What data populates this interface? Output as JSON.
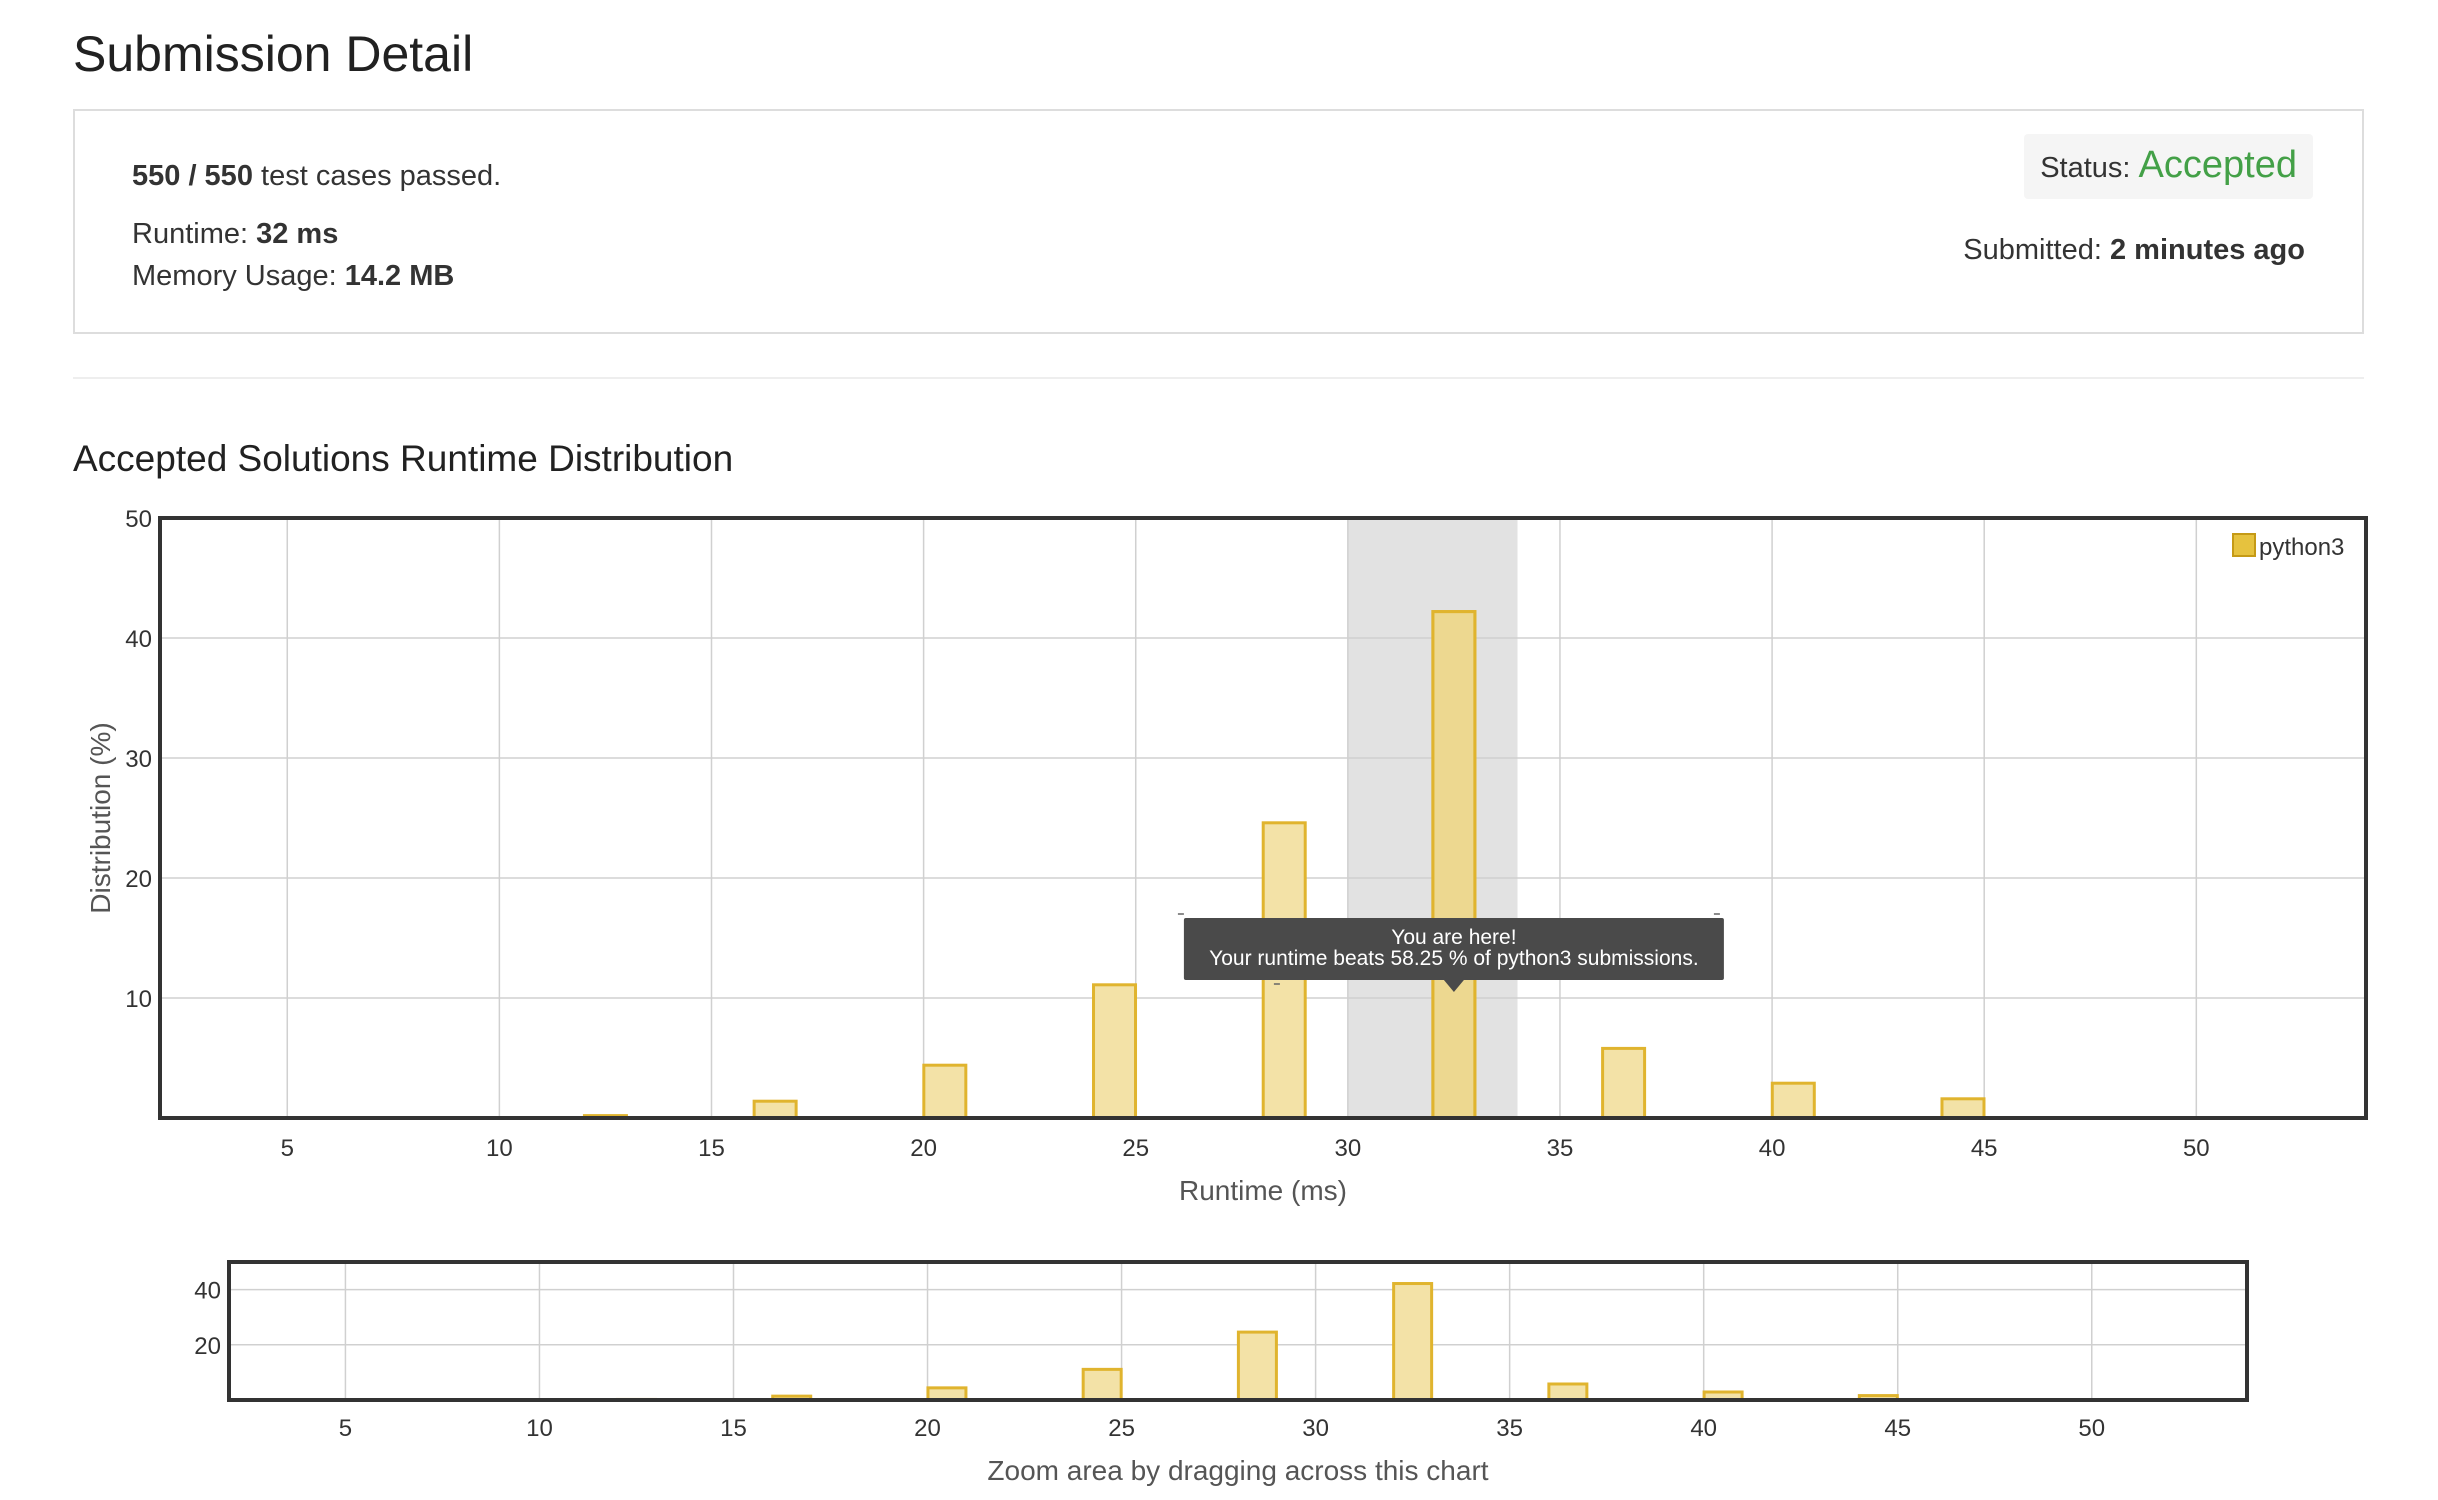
{
  "page": {
    "title": "Submission Detail"
  },
  "summary": {
    "passed_count": "550 / 550",
    "passed_suffix": "test cases passed.",
    "runtime_label": "Runtime:",
    "runtime_value": "32 ms",
    "memory_label": "Memory Usage:",
    "memory_value": "14.2 MB",
    "status_label": "Status:",
    "status_value": "Accepted",
    "submitted_label": "Submitted:",
    "submitted_value": "2 minutes ago"
  },
  "colors": {
    "accepted": "#43a047",
    "bar_fill": "#f3e2a7",
    "bar_stroke": "#e0b42e",
    "highlight_band": "#e2e2e2",
    "tooltip_bg": "#4a4a4a"
  },
  "section": {
    "title": "Accepted Solutions Runtime Distribution"
  },
  "tooltip": {
    "line1": "You are here!",
    "line2": "Your runtime beats 58.25 % of python3 submissions."
  },
  "chart_data": [
    {
      "type": "bar",
      "xlabel": "Runtime (ms)",
      "ylabel": "Distribution (%)",
      "xlim": [
        2,
        54
      ],
      "ylim": [
        0,
        50
      ],
      "xticks": [
        5,
        10,
        15,
        20,
        25,
        30,
        35,
        40,
        45,
        50
      ],
      "yticks": [
        10,
        20,
        30,
        40,
        50
      ],
      "grid": true,
      "legend": "top-right",
      "highlight_range": [
        30,
        34
      ],
      "series": [
        {
          "name": "python3",
          "x": [
            12.5,
            16.5,
            20.5,
            24.5,
            28.5,
            32.5,
            36.5,
            40.5,
            44.5
          ],
          "values": [
            0.2,
            1.4,
            4.4,
            11.1,
            24.6,
            42.2,
            5.8,
            2.9,
            1.6
          ]
        }
      ]
    },
    {
      "type": "bar",
      "caption": "Zoom area by dragging across this chart",
      "xlim": [
        2,
        54
      ],
      "ylim": [
        0,
        50
      ],
      "xticks": [
        5,
        10,
        15,
        20,
        25,
        30,
        35,
        40,
        45,
        50
      ],
      "yticks": [
        20,
        40
      ],
      "grid": true,
      "series": [
        {
          "x": [
            12.5,
            16.5,
            20.5,
            24.5,
            28.5,
            32.5,
            36.5,
            40.5,
            44.5
          ],
          "values": [
            0.2,
            1.4,
            4.4,
            11.1,
            24.6,
            42.2,
            5.8,
            2.9,
            1.6
          ]
        }
      ]
    }
  ]
}
